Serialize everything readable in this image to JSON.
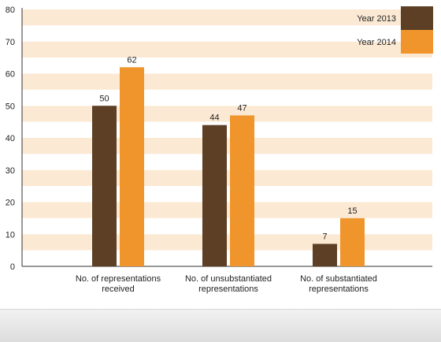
{
  "chart_data": {
    "type": "bar",
    "categories": [
      [
        "No. of representations",
        "received"
      ],
      [
        "No. of unsubstantiated",
        "representations"
      ],
      [
        "No. of substantiated",
        "representations"
      ]
    ],
    "series": [
      {
        "name": "Year 2013",
        "values": [
          50,
          44,
          7
        ],
        "color": "#5c3f24"
      },
      {
        "name": "Year 2014",
        "values": [
          62,
          47,
          15
        ],
        "color": "#f0952c"
      }
    ],
    "ylim": [
      0,
      80
    ],
    "yticks": [
      0,
      10,
      20,
      30,
      40,
      50,
      60,
      70,
      80
    ],
    "grid": true,
    "grid_colors": [
      "#fbe9d3",
      "#ffffff"
    ],
    "legend_position": "top-right",
    "title": "",
    "xlabel": "",
    "ylabel": ""
  }
}
